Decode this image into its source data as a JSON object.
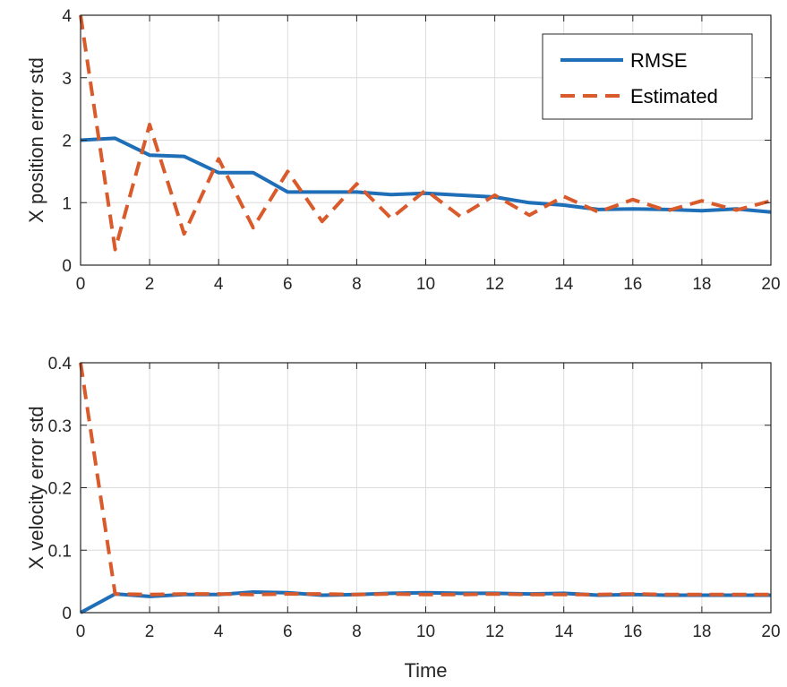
{
  "colors": {
    "rmse": "#1f6fb8",
    "estimated": "#d95a2b"
  },
  "chart_data": [
    {
      "type": "line",
      "xlabel": "",
      "ylabel": "X position error std",
      "xlim": [
        0,
        20
      ],
      "ylim": [
        0,
        4
      ],
      "xticks": [
        0,
        2,
        4,
        6,
        8,
        10,
        12,
        14,
        16,
        18,
        20
      ],
      "yticks": [
        0,
        1,
        2,
        3,
        4
      ],
      "grid": true,
      "legend": {
        "position": "top-right",
        "entries": [
          "RMSE",
          "Estimated"
        ]
      },
      "x": [
        0,
        1,
        2,
        3,
        4,
        5,
        6,
        7,
        8,
        9,
        10,
        11,
        12,
        13,
        14,
        15,
        16,
        17,
        18,
        19,
        20
      ],
      "series": [
        {
          "name": "RMSE",
          "style": "solid",
          "values": [
            2.0,
            2.03,
            1.76,
            1.74,
            1.48,
            1.48,
            1.17,
            1.17,
            1.17,
            1.13,
            1.15,
            1.12,
            1.09,
            1.0,
            0.96,
            0.89,
            0.9,
            0.89,
            0.87,
            0.9,
            0.85
          ]
        },
        {
          "name": "Estimated",
          "style": "dashed",
          "values": [
            4.0,
            0.25,
            2.25,
            0.5,
            1.7,
            0.6,
            1.5,
            0.7,
            1.3,
            0.75,
            1.2,
            0.78,
            1.12,
            0.8,
            1.1,
            0.85,
            1.05,
            0.87,
            1.03,
            0.88,
            1.03
          ]
        }
      ]
    },
    {
      "type": "line",
      "xlabel": "Time",
      "ylabel": "X velocity error std",
      "xlim": [
        0,
        20
      ],
      "ylim": [
        0,
        0.4
      ],
      "xticks": [
        0,
        2,
        4,
        6,
        8,
        10,
        12,
        14,
        16,
        18,
        20
      ],
      "yticks": [
        0,
        0.1,
        0.2,
        0.3,
        0.4
      ],
      "grid": true,
      "x": [
        0,
        1,
        2,
        3,
        4,
        5,
        6,
        7,
        8,
        9,
        10,
        11,
        12,
        13,
        14,
        15,
        16,
        17,
        18,
        19,
        20
      ],
      "series": [
        {
          "name": "RMSE",
          "style": "solid",
          "values": [
            0.0,
            0.03,
            0.026,
            0.029,
            0.029,
            0.033,
            0.032,
            0.028,
            0.029,
            0.031,
            0.032,
            0.031,
            0.031,
            0.03,
            0.031,
            0.028,
            0.029,
            0.028,
            0.028,
            0.028,
            0.028
          ]
        },
        {
          "name": "Estimated",
          "style": "dashed",
          "values": [
            0.4,
            0.03,
            0.029,
            0.03,
            0.03,
            0.029,
            0.03,
            0.03,
            0.029,
            0.03,
            0.029,
            0.029,
            0.03,
            0.029,
            0.029,
            0.029,
            0.03,
            0.029,
            0.029,
            0.029,
            0.029
          ]
        }
      ]
    }
  ]
}
